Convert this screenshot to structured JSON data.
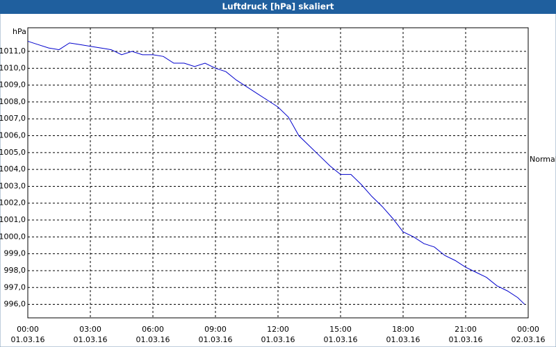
{
  "chart_data": {
    "type": "line",
    "title": "Luftdruck [hPa] skaliert",
    "y_label": "hPa",
    "x": [
      0,
      0.5,
      1,
      1.5,
      2,
      2.5,
      3,
      3.5,
      4,
      4.5,
      5,
      5.5,
      6,
      6.5,
      7,
      7.5,
      8,
      8.5,
      9,
      9.5,
      10,
      10.5,
      11,
      11.5,
      12,
      12.5,
      13,
      13.5,
      14,
      14.5,
      15,
      15.5,
      16,
      16.5,
      17,
      17.5,
      18,
      18.5,
      19,
      19.5,
      20,
      20.5,
      21,
      21.5,
      22,
      22.5,
      23,
      23.5,
      23.83
    ],
    "series": [
      {
        "name": "Normal",
        "color": "#0000cc",
        "values": [
          1011.6,
          1011.4,
          1011.2,
          1011.1,
          1011.5,
          1011.4,
          1011.3,
          1011.2,
          1011.1,
          1010.8,
          1011.0,
          1010.8,
          1010.8,
          1010.7,
          1010.3,
          1010.3,
          1010.1,
          1010.3,
          1010.0,
          1009.8,
          1009.3,
          1008.9,
          1008.5,
          1008.1,
          1007.7,
          1007.1,
          1006.0,
          1005.4,
          1004.8,
          1004.2,
          1003.7,
          1003.7,
          1003.1,
          1002.4,
          1001.8,
          1001.1,
          1000.3,
          1000.0,
          999.6,
          999.4,
          998.9,
          998.6,
          998.2,
          997.9,
          997.6,
          997.1,
          996.8,
          996.4,
          996.0
        ]
      }
    ],
    "xlim": [
      0,
      24
    ],
    "xticks": [
      {
        "value": 0,
        "label": "00:00",
        "date": "01.03.16"
      },
      {
        "value": 3,
        "label": "03:00",
        "date": "01.03.16"
      },
      {
        "value": 6,
        "label": "06:00",
        "date": "01.03.16"
      },
      {
        "value": 9,
        "label": "09:00",
        "date": "01.03.16"
      },
      {
        "value": 12,
        "label": "12:00",
        "date": "01.03.16"
      },
      {
        "value": 15,
        "label": "15:00",
        "date": "01.03.16"
      },
      {
        "value": 18,
        "label": "18:00",
        "date": "01.03.16"
      },
      {
        "value": 21,
        "label": "21:00",
        "date": "01.03.16"
      },
      {
        "value": 24,
        "label": "00:00",
        "date": "02.03.16"
      }
    ],
    "ylim": [
      995.2,
      1012.4
    ],
    "yticks": [
      {
        "value": 996,
        "label": "996,0"
      },
      {
        "value": 997,
        "label": "997,0"
      },
      {
        "value": 998,
        "label": "998,0"
      },
      {
        "value": 999,
        "label": "999,0"
      },
      {
        "value": 1000,
        "label": "1000,0"
      },
      {
        "value": 1001,
        "label": "1001,0"
      },
      {
        "value": 1002,
        "label": "1002,0"
      },
      {
        "value": 1003,
        "label": "1003,0"
      },
      {
        "value": 1004,
        "label": "1004,0"
      },
      {
        "value": 1005,
        "label": "1005,0"
      },
      {
        "value": 1006,
        "label": "1006,0"
      },
      {
        "value": 1007,
        "label": "1007,0"
      },
      {
        "value": 1008,
        "label": "1008,0"
      },
      {
        "value": 1009,
        "label": "1009,0"
      },
      {
        "value": 1010,
        "label": "1010,0"
      },
      {
        "value": 1011,
        "label": "1011,0"
      }
    ],
    "grid": true
  }
}
